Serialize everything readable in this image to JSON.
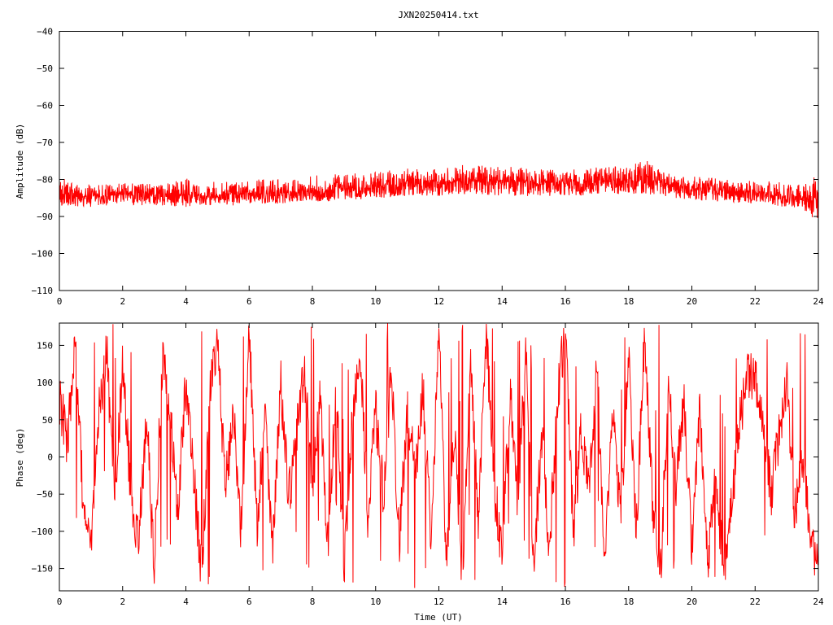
{
  "chart_data": [
    {
      "type": "line",
      "title": "JXN20250414.txt",
      "xlabel": "",
      "ylabel": "Amplitude (dB)",
      "xlim": [
        0,
        24
      ],
      "ylim": [
        -110,
        -40
      ],
      "x_ticks": [
        0,
        2,
        4,
        6,
        8,
        10,
        12,
        14,
        16,
        18,
        20,
        22,
        24
      ],
      "y_ticks": [
        -110,
        -100,
        -90,
        -80,
        -70,
        -60,
        -50,
        -40
      ],
      "x_tick_labels": [
        "0",
        "2",
        "4",
        "6",
        "8",
        "10",
        "12",
        "14",
        "16",
        "18",
        "20",
        "22",
        "24"
      ],
      "y_tick_labels": [
        "−110",
        "−100",
        "−90",
        "−80",
        "−70",
        "−60",
        "−50",
        "−40"
      ],
      "grid": false,
      "color": "#ff0000",
      "series": [
        {
          "x": [
            0,
            0.5,
            1,
            1.5,
            2,
            2.5,
            3,
            3.5,
            4,
            4.5,
            5,
            5.5,
            6,
            6.5,
            7,
            7.5,
            8,
            8.5,
            9,
            9.5,
            10,
            10.5,
            11,
            11.5,
            12,
            12.5,
            13,
            13.5,
            14,
            14.5,
            15,
            15.5,
            16,
            16.5,
            17,
            17.5,
            18,
            18.5,
            19,
            19.5,
            20,
            20.5,
            21,
            21.5,
            22,
            22.5,
            23,
            23.5,
            24
          ],
          "y_mid": [
            -84,
            -84.5,
            -84.5,
            -84.5,
            -84,
            -84,
            -84,
            -84,
            -84,
            -84.5,
            -84.5,
            -84,
            -84,
            -84,
            -84,
            -83.5,
            -83,
            -83,
            -82.5,
            -82.5,
            -82,
            -81.5,
            -81,
            -81,
            -80.5,
            -80.5,
            -80.5,
            -80.5,
            -80.5,
            -80.5,
            -81,
            -81,
            -81,
            -81,
            -80.5,
            -80.5,
            -80.5,
            -80,
            -81,
            -81.5,
            -82.5,
            -82.5,
            -83,
            -83.5,
            -83.5,
            -84,
            -84.5,
            -85,
            -85.5
          ],
          "y_low": [
            -87,
            -87.5,
            -87.5,
            -87,
            -87,
            -87,
            -87,
            -87,
            -87.5,
            -87,
            -87,
            -87,
            -86.5,
            -86.5,
            -86.5,
            -86,
            -86,
            -86,
            -85.5,
            -85.5,
            -85,
            -85,
            -84.5,
            -84.5,
            -84.5,
            -84,
            -84,
            -84.5,
            -84.5,
            -84.5,
            -84.5,
            -84.5,
            -84.5,
            -84.5,
            -84,
            -84,
            -84,
            -84,
            -84.5,
            -85,
            -85.5,
            -86,
            -86,
            -86.5,
            -86.5,
            -87,
            -87.5,
            -88,
            -92
          ],
          "y_high": [
            -79,
            -81,
            -81,
            -80.5,
            -81,
            -81,
            -81,
            -81,
            -79.5,
            -81,
            -80.5,
            -80.5,
            -80,
            -80,
            -80,
            -80,
            -79,
            -78.5,
            -78.5,
            -78,
            -78,
            -77.5,
            -77,
            -77,
            -76.5,
            -76.5,
            -75.5,
            -76,
            -76.5,
            -76.5,
            -77,
            -77,
            -77.5,
            -77,
            -76.5,
            -76.5,
            -76,
            -74.5,
            -77.5,
            -78.5,
            -79,
            -79.5,
            -80,
            -80,
            -80.5,
            -80.5,
            -81,
            -80.5,
            -79
          ]
        }
      ]
    },
    {
      "type": "line",
      "title": "",
      "xlabel": "Time (UT)",
      "ylabel": "Phase (deg)",
      "xlim": [
        0,
        24
      ],
      "ylim": [
        -180,
        180
      ],
      "x_ticks": [
        0,
        2,
        4,
        6,
        8,
        10,
        12,
        14,
        16,
        18,
        20,
        22,
        24
      ],
      "y_ticks": [
        -150,
        -100,
        -50,
        0,
        50,
        100,
        150
      ],
      "x_tick_labels": [
        "0",
        "2",
        "4",
        "6",
        "8",
        "10",
        "12",
        "14",
        "16",
        "18",
        "20",
        "22",
        "24"
      ],
      "y_tick_labels": [
        "−150",
        "−100",
        "−50",
        "0",
        "50",
        "100",
        "150"
      ],
      "grid": false,
      "color": "#ff0000",
      "series": [
        {
          "x": [
            0,
            0.25,
            0.5,
            0.75,
            1,
            1.25,
            1.5,
            1.75,
            2,
            2.25,
            2.5,
            2.75,
            3,
            3.25,
            3.5,
            3.75,
            4,
            4.25,
            4.5,
            4.75,
            5,
            5.25,
            5.5,
            5.75,
            6,
            6.25,
            6.5,
            6.75,
            7,
            7.25,
            7.5,
            7.75,
            8,
            8.25,
            8.5,
            8.75,
            9,
            9.25,
            9.5,
            9.75,
            10,
            10.25,
            10.5,
            10.75,
            11,
            11.25,
            11.5,
            11.75,
            12,
            12.25,
            12.5,
            12.75,
            13,
            13.25,
            13.5,
            13.75,
            14,
            14.25,
            14.5,
            14.75,
            15,
            15.25,
            15.5,
            15.75,
            16,
            16.25,
            16.5,
            16.75,
            17,
            17.25,
            17.5,
            17.75,
            18,
            18.25,
            18.5,
            18.75,
            19,
            19.25,
            19.5,
            19.75,
            20,
            20.25,
            20.5,
            20.75,
            21,
            21.25,
            21.5,
            21.75,
            22,
            22.25,
            22.5,
            22.75,
            23,
            23.25,
            23.5,
            23.75,
            24
          ],
          "y": [
            80,
            20,
            150,
            -60,
            -130,
            60,
            140,
            -60,
            120,
            -40,
            -120,
            60,
            -150,
            130,
            60,
            -80,
            110,
            -30,
            -160,
            80,
            150,
            -40,
            60,
            -100,
            170,
            -90,
            60,
            -120,
            100,
            -60,
            30,
            120,
            -40,
            80,
            -130,
            100,
            -160,
            40,
            150,
            -80,
            60,
            -50,
            120,
            -120,
            60,
            -20,
            90,
            -100,
            170,
            -150,
            40,
            -170,
            120,
            -80,
            160,
            -40,
            -130,
            90,
            -60,
            140,
            -150,
            30,
            -120,
            80,
            170,
            -100,
            40,
            -50,
            120,
            -150,
            60,
            -80,
            140,
            -100,
            170,
            -60,
            -170,
            100,
            -40,
            80,
            -130,
            60,
            -150,
            -20,
            -160,
            -60,
            40,
            110,
            100,
            50,
            -50,
            30,
            100,
            -80,
            10,
            -120,
            -150
          ]
        }
      ]
    }
  ]
}
